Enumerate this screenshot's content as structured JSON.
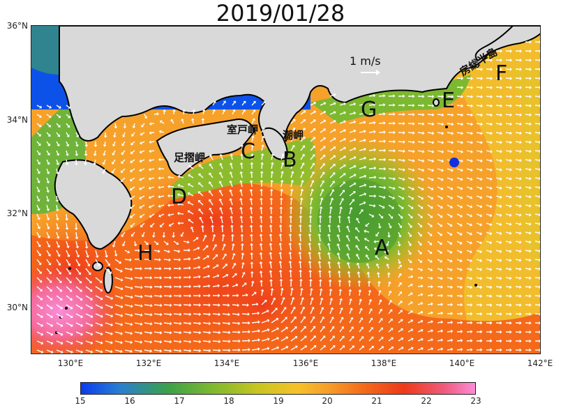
{
  "title": "2019/01/28",
  "lat_ticks": [
    "36°N",
    "34°N",
    "32°N",
    "30°N"
  ],
  "lon_ticks": [
    "130°E",
    "132°E",
    "134°E",
    "136°E",
    "138°E",
    "140°E",
    "142°E"
  ],
  "colorbar": {
    "ticks": [
      "15",
      "16",
      "17",
      "18",
      "19",
      "20",
      "21",
      "22",
      "23"
    ],
    "colors": [
      "#0a3cf0",
      "#2a7fd0",
      "#3aa14a",
      "#7cb830",
      "#c8c520",
      "#f7c12a",
      "#f46a1a",
      "#ee3a1a",
      "#fb8cd8"
    ]
  },
  "scale": {
    "label": "1 m/s"
  },
  "regions": [
    "A",
    "B",
    "C",
    "D",
    "E",
    "F",
    "G",
    "H"
  ],
  "places": {
    "ashizuri": "足摺岬",
    "muroto": "室戸岬",
    "shionomisaki": "潮岬",
    "boso": "房総半島"
  },
  "marker": {
    "color": "#1030e0"
  }
}
